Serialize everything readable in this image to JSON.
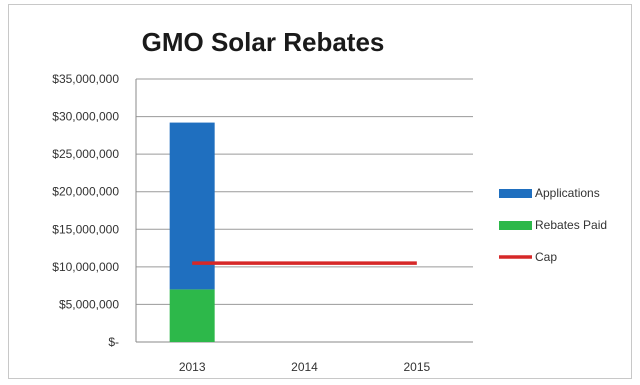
{
  "chart_data": {
    "type": "bar",
    "title": "GMO Solar Rebates",
    "categories": [
      "2013",
      "2014",
      "2015"
    ],
    "y_tick_labels": [
      "$-",
      "$5,000,000",
      "$10,000,000",
      "$15,000,000",
      "$20,000,000",
      "$25,000,000",
      "$30,000,000",
      "$35,000,000"
    ],
    "ylim": [
      0,
      35000000
    ],
    "ystep": 5000000,
    "grid": true,
    "legend_position": "right",
    "series": [
      {
        "name": "Applications",
        "kind": "stacked-bar",
        "color": "#1f6fbf",
        "values": [
          22200000,
          null,
          null
        ]
      },
      {
        "name": "Rebates Paid",
        "kind": "stacked-bar",
        "color": "#2db84a",
        "values": [
          7000000,
          null,
          null
        ]
      },
      {
        "name": "Cap",
        "kind": "line",
        "color": "#d62828",
        "values": [
          10500000,
          10500000,
          10500000
        ]
      }
    ]
  }
}
